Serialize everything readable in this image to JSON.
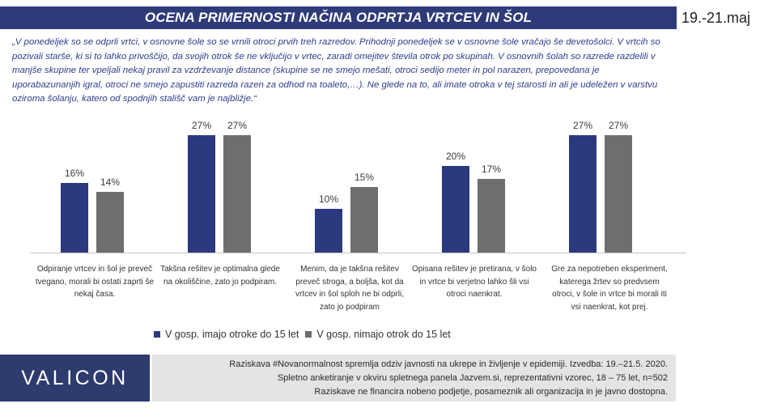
{
  "header": {
    "title": "OCENA PRIMERNOSTI NAČINA ODPRTJA VRTCEV IN ŠOL",
    "date": "19.-21.maj"
  },
  "question": "„V ponedeljek so se odprli vrtci, v osnovne šole so se vrnili otroci prvih treh razredov. Prihodnji ponedeljek se v osnovne šole vračajo še devetošolci. V vrtcih so pozivali starše, ki si to lahko privoščijo, da svojih otrok še ne vključijo v vrtec, zaradi omejitev števila otrok po skupinah. V osnovnih šolah so razrede razdelili v manjše skupine ter vpeljali nekaj pravil za vzdrževanje distance (skupine se ne smejo mešati, otroci sedijo meter in pol narazen, prepovedana je uporabazunanjih igral, otroci ne smejo zapustiti razreda razen za odhod na toaleto,…). Ne glede na to, ali imate otroka v tej starosti in ali je udeležen v varstvu oziroma šolanju, katero od spodnjih stališč vam je najbližje.“",
  "chart_data": {
    "type": "bar",
    "categories": [
      "Odpiranje vrtcev in šol je preveč tvegano, morali bi ostati zaprti še nekaj časa.",
      "Takšna rešitev je optimalna glede na okoliščine, zato jo podpiram.",
      "Menim, da je takšna rešitev preveč stroga, a boljša, kot da vrtcev in šol sploh ne bi odprli, zato jo podpiram",
      "Opisana rešitev je pretirana, v šolo in vrtce bi verjetno lahko šli vsi otroci naenkrat.",
      "Gre za nepotreben eksperiment, katerega žrtev so predvsem otroci, v šole in vrtce bi morali iti vsi naenkrat, kot prej."
    ],
    "series": [
      {
        "name": "V gosp. imajo otroke do 15 let",
        "values": [
          16,
          27,
          10,
          20,
          27
        ],
        "color": "#2B3A7E"
      },
      {
        "name": "V gosp. nimajo otrok do 15 let",
        "values": [
          14,
          27,
          15,
          17,
          27
        ],
        "color": "#6E6E6E"
      }
    ],
    "value_suffix": "%",
    "legend": "bottom",
    "grid": false
  },
  "brand": {
    "logo_text": "VALICON",
    "color": "#2E3B6E"
  },
  "footer": {
    "lines": [
      "Raziskava #Novanormalnost spremlja odziv javnosti na ukrepe in življenje v epidemiji. Izvedba: 19.–21.5. 2020.",
      "Spletno anketiranje v okviru spletnega panela Jazvem.si, reprezentativni vzorec, 18 – 75 let, n=502",
      "Raziskave ne financira nobeno podjetje, posameznik ali organizacija in je javno dostopna."
    ]
  }
}
